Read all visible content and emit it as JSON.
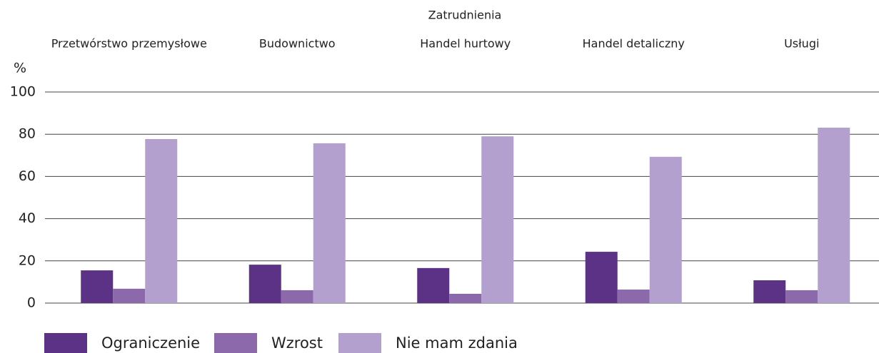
{
  "chart_data": {
    "type": "bar",
    "title": "Zatrudnienia",
    "y_label": "%",
    "categories": [
      "Przetwórstwo przemysłowe",
      "Budownictwo",
      "Handel hurtowy",
      "Handel detaliczny",
      "Usługi"
    ],
    "series": [
      {
        "name": "Ograniczenie",
        "color": "#5b3286",
        "values": [
          15.5,
          18.2,
          16.6,
          24.3,
          10.8
        ]
      },
      {
        "name": "Wzrost",
        "color": "#8c69aa",
        "values": [
          6.8,
          6.1,
          4.4,
          6.4,
          6.1
        ]
      },
      {
        "name": "Nie mam zdania",
        "color": "#b3a0cf",
        "values": [
          77.7,
          75.7,
          79,
          69.3,
          83.1
        ]
      }
    ],
    "ylim": [
      0,
      100
    ],
    "yticks": [
      0,
      20,
      40,
      60,
      80,
      100
    ],
    "grid": true
  }
}
